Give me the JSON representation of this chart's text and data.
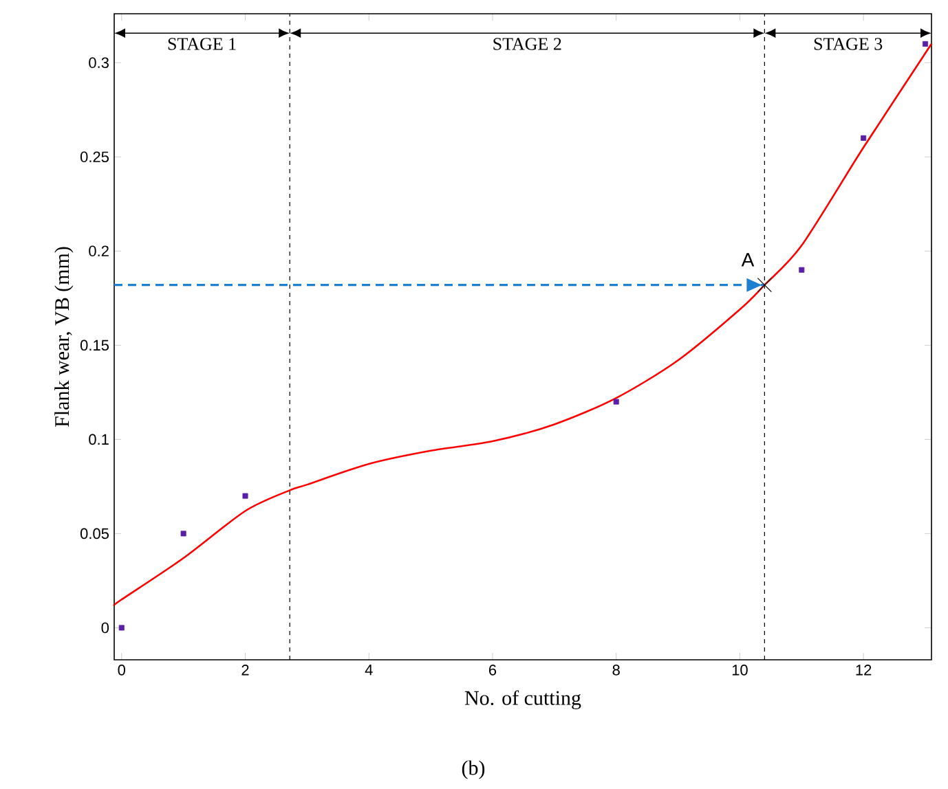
{
  "chart_data": {
    "type": "scatter",
    "xlabel": "No. of cutting",
    "ylabel": "Flank wear, VB (mm)",
    "xlim": [
      -0.12,
      13.1
    ],
    "ylim": [
      -0.017,
      0.326
    ],
    "xticks": [
      0,
      2,
      4,
      6,
      8,
      10,
      12
    ],
    "yticks": [
      0,
      0.05,
      0.1,
      0.15,
      0.2,
      0.25,
      0.3
    ],
    "series": [
      {
        "marker": "square",
        "color": "#5a1fa8",
        "x": [
          0,
          1,
          2,
          8,
          11,
          12,
          13
        ],
        "values": [
          0,
          0.05,
          0.07,
          0.12,
          0.19,
          0.26,
          0.31
        ]
      },
      {
        "type": "line",
        "marker": "none",
        "color": "#ff0000",
        "line_style": "solid",
        "x": [
          -0.12,
          0,
          1,
          2,
          2.72,
          3,
          4,
          5,
          6,
          7,
          8,
          9,
          10,
          10.4,
          11,
          12,
          13.1
        ],
        "values": [
          0.012,
          0.015,
          0.037,
          0.062,
          0.073,
          0.076,
          0.087,
          0.094,
          0.099,
          0.108,
          0.122,
          0.142,
          0.169,
          0.182,
          0.203,
          0.255,
          0.31
        ]
      },
      {
        "type": "line",
        "marker": "none",
        "color": "#1f7fd0",
        "line_style": "dashed",
        "x": [
          -0.12,
          10.4
        ],
        "values": [
          0.182,
          0.182
        ]
      }
    ],
    "ref_lines": [
      {
        "axis": "x",
        "value": 2.72,
        "color": "#000000",
        "line_style": "dashed"
      },
      {
        "axis": "x",
        "value": 10.4,
        "color": "#000000",
        "line_style": "dashed"
      }
    ],
    "annotations": [
      "STAGE 1",
      "STAGE 2",
      "STAGE 3",
      {
        "text": "A",
        "x": 10.4,
        "y": 0.182
      },
      "(b)"
    ]
  }
}
